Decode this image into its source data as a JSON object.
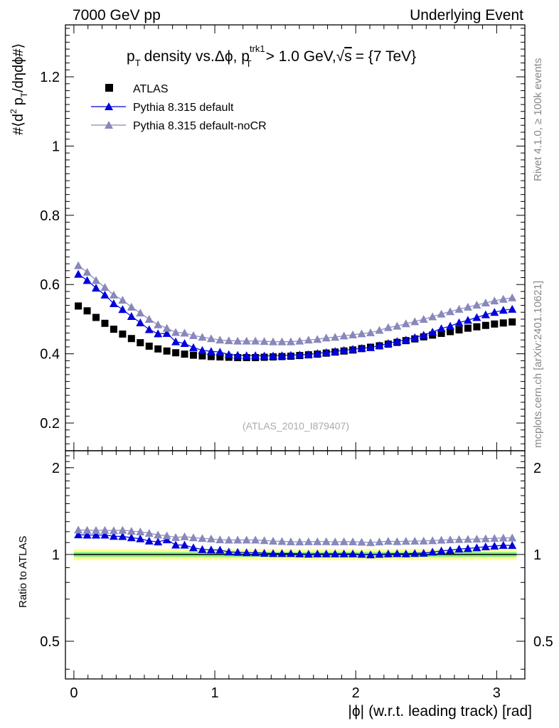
{
  "header": {
    "left": "7000 GeV pp",
    "right": "Underlying Event"
  },
  "side_labels": {
    "rivet": "Rivet 4.1.0, ≥ 100k events",
    "mcplots": "mcplots.cern.ch [arXiv:2401.10621]"
  },
  "colors": {
    "atlas": "#000000",
    "default": "#0000dd",
    "nocr": "#8888bb",
    "band_inner": "#88ee88",
    "band_outer": "#ffff99"
  },
  "chart_data": [
    {
      "type": "scatter",
      "panel": "main",
      "title": "pT density vs.Δϕ, pTtrk1 > 1.0 GeV,√s = {7 TeV}",
      "title_parts": {
        "p": "p",
        "sub_T": "T",
        "mid": "density vs.Δϕ, p",
        "sup_trk1": "trk1",
        "sub_T2": "T",
        "tail": "> 1.0 GeV,",
        "sqrt": "√",
        "s": "s",
        "end": "= {7 TeV}"
      },
      "ylabel": "#⟨d² pT/dηdϕ#⟩",
      "ylabel_parts": {
        "a": "#⟨d",
        "sup2": "2",
        "b": "p",
        "sub": "T",
        "c": "/dηdϕ#⟩"
      },
      "watermark": "(ATLAS_2010_I879407)",
      "ylim": [
        0.12,
        1.35
      ],
      "xlim": [
        -0.06,
        3.2
      ],
      "yticks": [
        0.2,
        0.4,
        0.6,
        0.8,
        1.0,
        1.2
      ],
      "ytick_labels": [
        "0.2",
        "0.4",
        "0.6",
        "0.8",
        "1",
        "1.2"
      ],
      "legend_position": "top-left",
      "x": [
        0.0314,
        0.0942,
        0.1571,
        0.2199,
        0.2827,
        0.3456,
        0.4084,
        0.4712,
        0.5341,
        0.5969,
        0.6597,
        0.7226,
        0.7854,
        0.8482,
        0.9111,
        0.9739,
        1.0367,
        1.0996,
        1.1624,
        1.2252,
        1.2881,
        1.3509,
        1.4137,
        1.4765,
        1.5394,
        1.6022,
        1.665,
        1.7279,
        1.7907,
        1.8535,
        1.9164,
        1.9792,
        2.042,
        2.1049,
        2.1677,
        2.2305,
        2.2934,
        2.3562,
        2.419,
        2.4819,
        2.5447,
        2.6075,
        2.6704,
        2.7332,
        2.796,
        2.8588,
        2.9217,
        2.9845,
        3.0473,
        3.1102
      ],
      "series": [
        {
          "name": "ATLAS",
          "marker": "square",
          "values": [
            0.538,
            0.524,
            0.505,
            0.488,
            0.471,
            0.457,
            0.444,
            0.432,
            0.422,
            0.414,
            0.408,
            0.403,
            0.399,
            0.396,
            0.394,
            0.392,
            0.391,
            0.39,
            0.389,
            0.389,
            0.389,
            0.39,
            0.391,
            0.392,
            0.393,
            0.395,
            0.397,
            0.399,
            0.402,
            0.405,
            0.408,
            0.411,
            0.415,
            0.419,
            0.423,
            0.428,
            0.433,
            0.438,
            0.443,
            0.449,
            0.454,
            0.459,
            0.464,
            0.469,
            0.474,
            0.478,
            0.482,
            0.486,
            0.489,
            0.492
          ]
        },
        {
          "name": "Pythia 8.315 default",
          "marker": "triangle",
          "values": [
            0.63,
            0.612,
            0.59,
            0.57,
            0.545,
            0.528,
            0.508,
            0.49,
            0.47,
            0.458,
            0.459,
            0.435,
            0.43,
            0.418,
            0.41,
            0.407,
            0.405,
            0.398,
            0.396,
            0.395,
            0.395,
            0.394,
            0.394,
            0.395,
            0.396,
            0.397,
            0.398,
            0.401,
            0.404,
            0.407,
            0.41,
            0.413,
            0.416,
            0.418,
            0.424,
            0.43,
            0.436,
            0.44,
            0.447,
            0.454,
            0.463,
            0.473,
            0.48,
            0.49,
            0.497,
            0.505,
            0.513,
            0.52,
            0.526,
            0.529
          ]
        },
        {
          "name": "Pythia 8.315 default-noCR",
          "marker": "triangle",
          "values": [
            0.655,
            0.636,
            0.612,
            0.592,
            0.57,
            0.555,
            0.535,
            0.518,
            0.5,
            0.484,
            0.474,
            0.462,
            0.46,
            0.453,
            0.448,
            0.444,
            0.44,
            0.438,
            0.437,
            0.437,
            0.437,
            0.436,
            0.435,
            0.435,
            0.435,
            0.437,
            0.44,
            0.442,
            0.446,
            0.448,
            0.452,
            0.455,
            0.458,
            0.461,
            0.468,
            0.476,
            0.48,
            0.487,
            0.493,
            0.5,
            0.507,
            0.515,
            0.522,
            0.529,
            0.535,
            0.541,
            0.547,
            0.553,
            0.558,
            0.562
          ]
        }
      ]
    },
    {
      "type": "scatter",
      "panel": "ratio",
      "ylabel": "Ratio to ATLAS",
      "xlabel": "|ϕ| (w.r.t. leading track) [rad]",
      "xlabel_parts": {
        "a": "|ϕ|",
        "b": "(w.r.t. leading track) [rad]"
      },
      "ylim": [
        0.37,
        2.29
      ],
      "xlim": [
        -0.06,
        3.2
      ],
      "yticks": [
        0.5,
        1.0,
        2.0
      ],
      "ytick_labels": [
        "0.5",
        "1",
        "2"
      ],
      "xticks": [
        0,
        1,
        2,
        3
      ],
      "xtick_labels": [
        "0",
        "1",
        "2",
        "3"
      ],
      "band_inner": [
        0.98,
        1.02
      ],
      "band_outer": [
        0.955,
        1.045
      ],
      "x": [
        0.0314,
        0.0942,
        0.1571,
        0.2199,
        0.2827,
        0.3456,
        0.4084,
        0.4712,
        0.5341,
        0.5969,
        0.6597,
        0.7226,
        0.7854,
        0.8482,
        0.9111,
        0.9739,
        1.0367,
        1.0996,
        1.1624,
        1.2252,
        1.2881,
        1.3509,
        1.4137,
        1.4765,
        1.5394,
        1.6022,
        1.665,
        1.7279,
        1.7907,
        1.8535,
        1.9164,
        1.9792,
        2.042,
        2.1049,
        2.1677,
        2.2305,
        2.2934,
        2.3562,
        2.419,
        2.4819,
        2.5447,
        2.6075,
        2.6704,
        2.7332,
        2.796,
        2.8588,
        2.9217,
        2.9845,
        3.0473,
        3.1102
      ],
      "series": [
        {
          "name": "Pythia 8.315 default",
          "marker": "triangle",
          "values": [
            1.171,
            1.168,
            1.168,
            1.168,
            1.157,
            1.155,
            1.144,
            1.134,
            1.114,
            1.106,
            1.125,
            1.079,
            1.078,
            1.056,
            1.041,
            1.038,
            1.036,
            1.021,
            1.018,
            1.015,
            1.015,
            1.01,
            1.008,
            1.008,
            1.008,
            1.005,
            1.003,
            1.005,
            1.005,
            1.005,
            1.005,
            1.005,
            1.002,
            0.998,
            1.002,
            1.005,
            1.007,
            1.005,
            1.009,
            1.011,
            1.02,
            1.03,
            1.034,
            1.045,
            1.049,
            1.056,
            1.064,
            1.07,
            1.076,
            1.075
          ]
        },
        {
          "name": "Pythia 8.315 default-noCR",
          "marker": "triangle",
          "values": [
            1.217,
            1.214,
            1.212,
            1.213,
            1.21,
            1.214,
            1.205,
            1.199,
            1.185,
            1.169,
            1.162,
            1.146,
            1.153,
            1.144,
            1.137,
            1.133,
            1.125,
            1.123,
            1.123,
            1.123,
            1.123,
            1.118,
            1.113,
            1.11,
            1.107,
            1.106,
            1.108,
            1.108,
            1.109,
            1.106,
            1.108,
            1.107,
            1.104,
            1.1,
            1.106,
            1.112,
            1.109,
            1.112,
            1.113,
            1.114,
            1.117,
            1.122,
            1.125,
            1.128,
            1.129,
            1.132,
            1.135,
            1.138,
            1.141,
            1.142
          ]
        }
      ]
    }
  ]
}
